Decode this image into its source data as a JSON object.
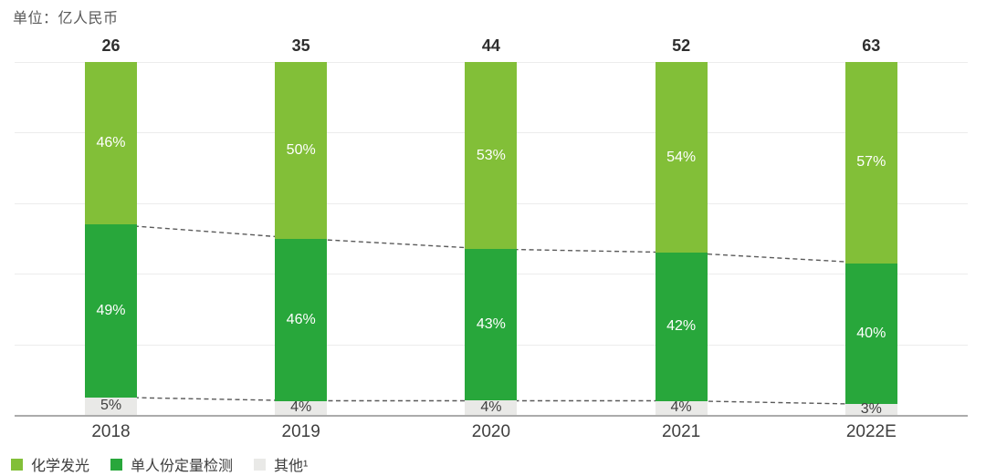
{
  "header": {
    "unit_label": "单位：亿人民币"
  },
  "chart_data": {
    "type": "bar",
    "subtype": "stacked-100-percent-column",
    "title": "",
    "unit_label": "单位：亿人民币",
    "unit": "亿人民币",
    "categories": [
      "2018",
      "2019",
      "2020",
      "2021",
      "2022E"
    ],
    "totals": [
      26,
      35,
      44,
      52,
      63
    ],
    "series": [
      {
        "name": "化学发光",
        "color": "#82BF38",
        "label_color": "#ffffff",
        "values_pct": [
          46,
          50,
          53,
          54,
          57
        ]
      },
      {
        "name": "单人份定量检测",
        "color": "#28A73B",
        "label_color": "#ffffff",
        "values_pct": [
          49,
          46,
          43,
          42,
          40
        ]
      },
      {
        "name": "其他¹",
        "color": "#E9E9E7",
        "label_color": "#3f3f3f",
        "values_pct": [
          5,
          4,
          4,
          4,
          3
        ]
      }
    ],
    "connector_lines": {
      "style": "dashed",
      "color": "#5a5a5a",
      "between_series_boundaries": true
    },
    "gridlines": {
      "show": true,
      "interval_pct": 20,
      "color": "#ececec"
    },
    "axis": {
      "baseline_color": "#ababab",
      "ylim_pct": [
        0,
        100
      ]
    },
    "legend_position": "bottom-left"
  }
}
